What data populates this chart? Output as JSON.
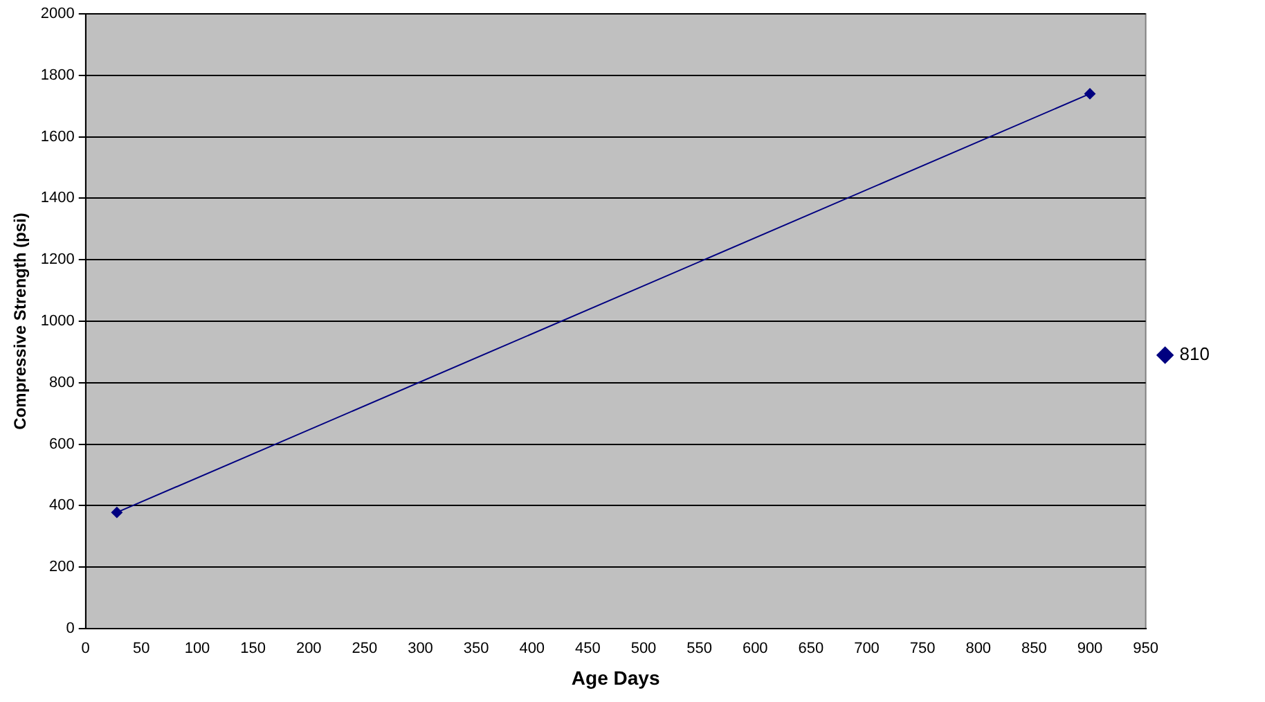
{
  "chart_data": {
    "type": "line",
    "xlabel": "Age Days",
    "ylabel": "Compressive Strength (psi)",
    "x": [
      28,
      900
    ],
    "series": [
      {
        "name": "810",
        "color": "#000080",
        "values": [
          378,
          1740
        ]
      }
    ],
    "xlim": [
      0,
      950
    ],
    "xticks": [
      0,
      50,
      100,
      150,
      200,
      250,
      300,
      350,
      400,
      450,
      500,
      550,
      600,
      650,
      700,
      750,
      800,
      850,
      900,
      950
    ],
    "ylim": [
      0,
      2000
    ],
    "yticks": [
      0,
      200,
      400,
      600,
      800,
      1000,
      1200,
      1400,
      1600,
      1800,
      2000
    ],
    "grid": "y",
    "legend": "right",
    "marker": "diamond",
    "line_style": "solid"
  }
}
